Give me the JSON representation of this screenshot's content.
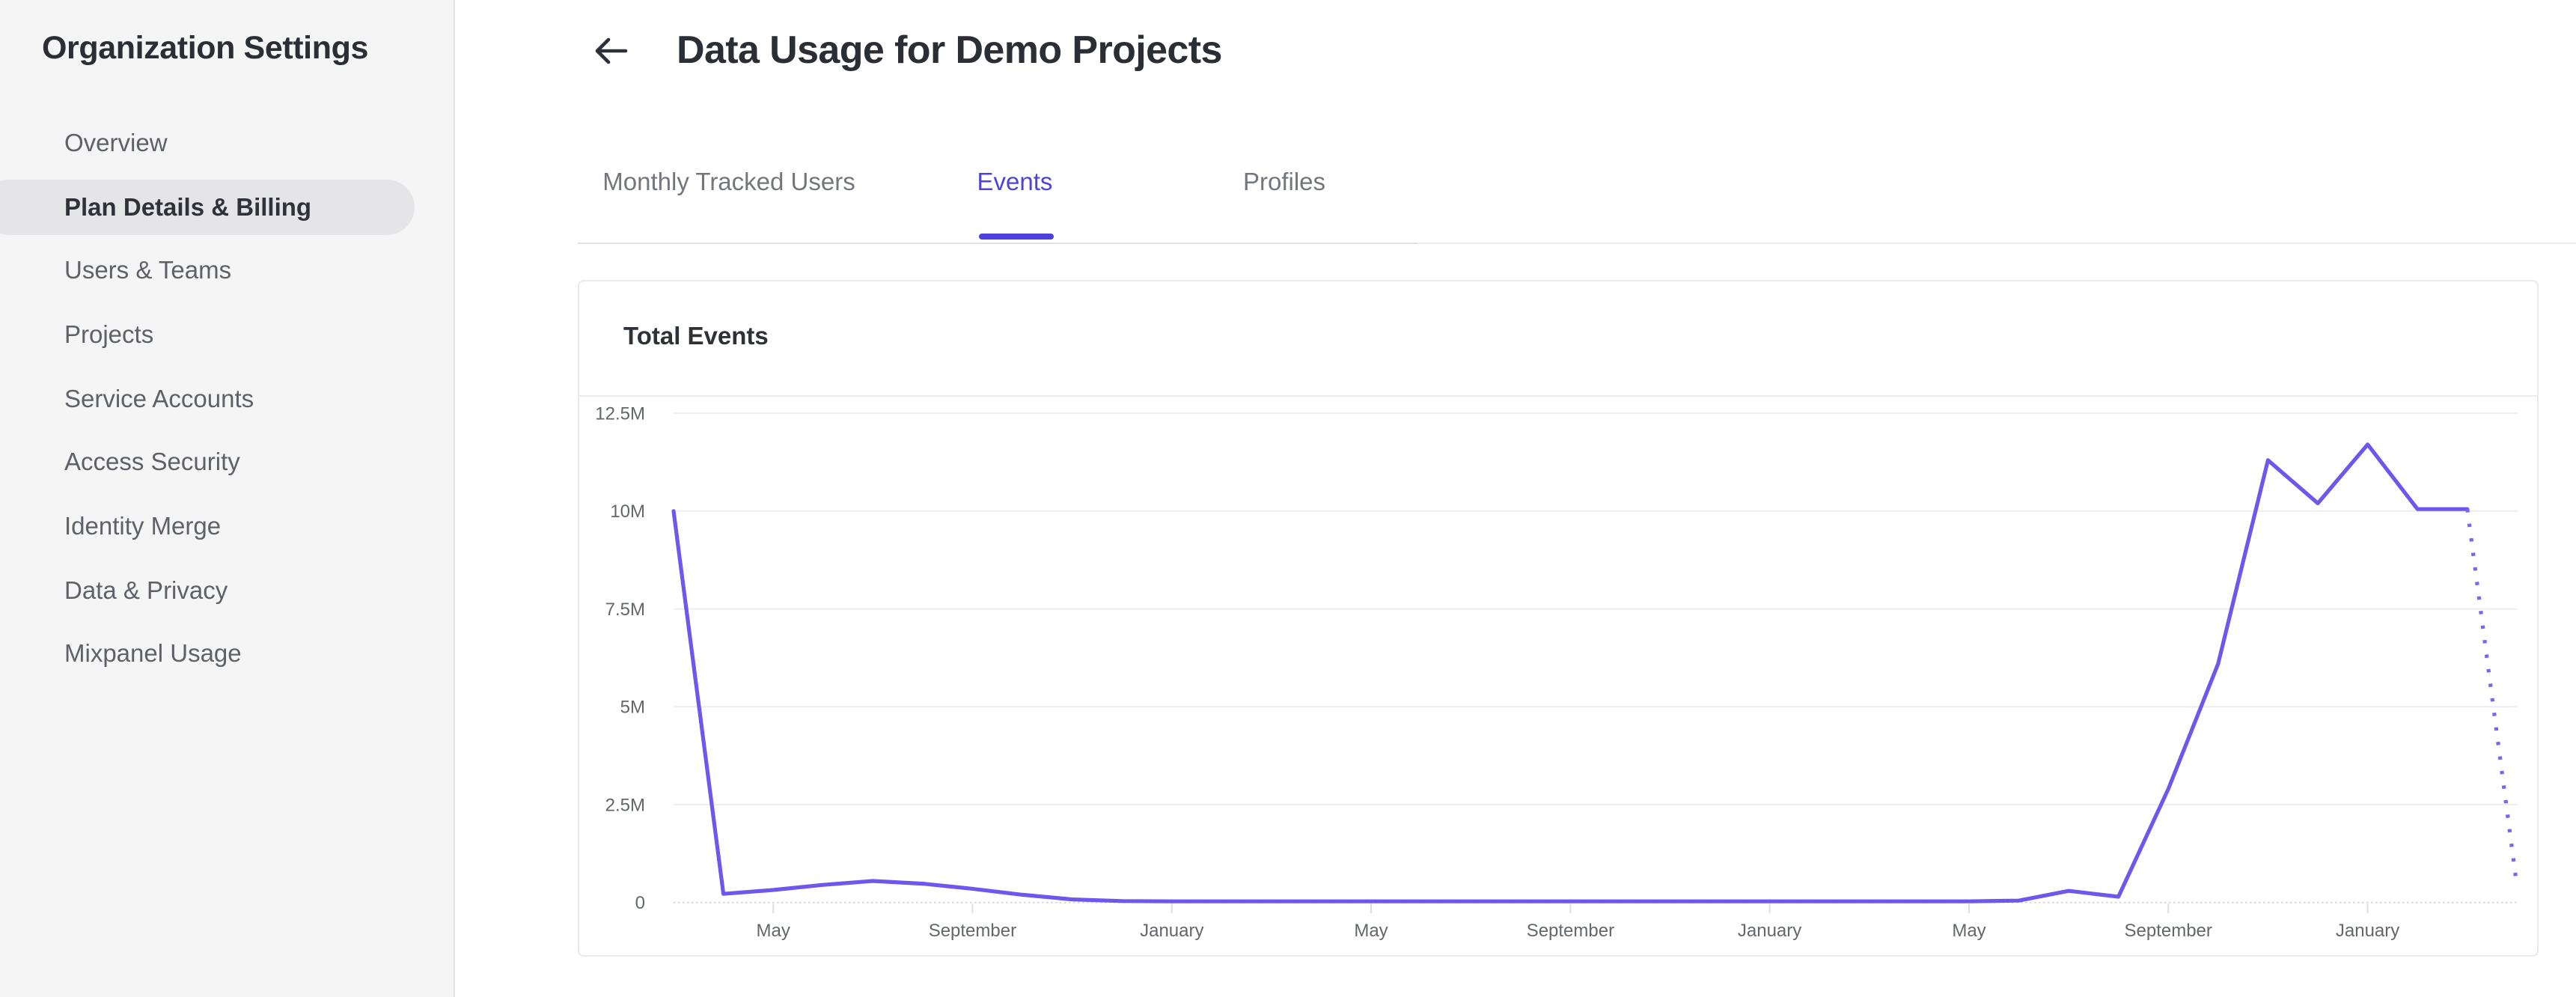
{
  "sidebar": {
    "title": "Organization Settings",
    "items": [
      {
        "label": "Overview",
        "selected": false
      },
      {
        "label": "Plan Details & Billing",
        "selected": true
      },
      {
        "label": "Users & Teams",
        "selected": false
      },
      {
        "label": "Projects",
        "selected": false
      },
      {
        "label": "Service Accounts",
        "selected": false
      },
      {
        "label": "Access Security",
        "selected": false
      },
      {
        "label": "Identity Merge",
        "selected": false
      },
      {
        "label": "Data & Privacy",
        "selected": false
      },
      {
        "label": "Mixpanel Usage",
        "selected": false
      }
    ]
  },
  "header": {
    "title": "Data Usage for Demo Projects",
    "back_icon": "arrow-left"
  },
  "tabs": [
    {
      "label": "Monthly Tracked Users",
      "active": false
    },
    {
      "label": "Events",
      "active": true
    },
    {
      "label": "Profiles",
      "active": false
    }
  ],
  "card": {
    "title": "Total Events"
  },
  "colors": {
    "accent": "#4c3fdb",
    "active_tab_text": "#5044d8",
    "chart_line": "#7156ee",
    "chart_line_projected": "#7c64f0",
    "sidebar_bg": "#f5f5f6",
    "selected_item_bg": "#e5e5e7"
  },
  "chart_data": {
    "type": "line",
    "title": "Total Events",
    "y_axis": {
      "tick_labels": [
        "12.5M",
        "10M",
        "7.5M",
        "5M",
        "2.5M",
        "0"
      ],
      "tick_values_millions": [
        12.5,
        10,
        7.5,
        5,
        2.5,
        0
      ],
      "range_millions": [
        0,
        12.5
      ]
    },
    "x_axis": {
      "tick_labels": [
        "May",
        "September",
        "January",
        "May",
        "September",
        "January",
        "May",
        "September",
        "January"
      ],
      "note": "monthly series; ticks every 4 months; series starts 2 months before first tick (March)"
    },
    "series": [
      {
        "name": "Total Events (actual)",
        "style": "solid",
        "start_month_index": 0,
        "values_millions": [
          10,
          0.22,
          0.32,
          0.45,
          0.55,
          0.48,
          0.35,
          0.2,
          0.08,
          0.04,
          0.03,
          0.03,
          0.03,
          0.03,
          0.03,
          0.03,
          0.03,
          0.03,
          0.03,
          0.03,
          0.03,
          0.03,
          0.03,
          0.03,
          0.03,
          0.03,
          0.03,
          0.05,
          0.3,
          0.15,
          2.9,
          6.1,
          11.3,
          10.2,
          11.7,
          10.05,
          10.05
        ]
      },
      {
        "name": "Total Events (projected)",
        "style": "dotted",
        "start_month_index": 36,
        "values_millions": [
          10.05,
          0.4
        ]
      }
    ],
    "line_color": "#7156ee",
    "projected_line_color": "#7c64f0",
    "grid": true,
    "legend": false
  }
}
